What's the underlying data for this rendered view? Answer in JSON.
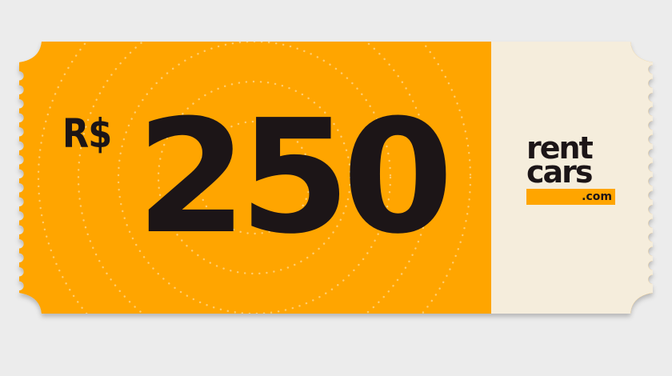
{
  "voucher": {
    "currency": "R$",
    "amount": "250"
  },
  "logo": {
    "line1": "rent",
    "line2": "cars",
    "domain": ".com"
  },
  "colors": {
    "page_background": "#ececec",
    "ticket_orange": "#ffa500",
    "stub_cream": "#f5eddc",
    "text_dark": "#1c1517"
  }
}
